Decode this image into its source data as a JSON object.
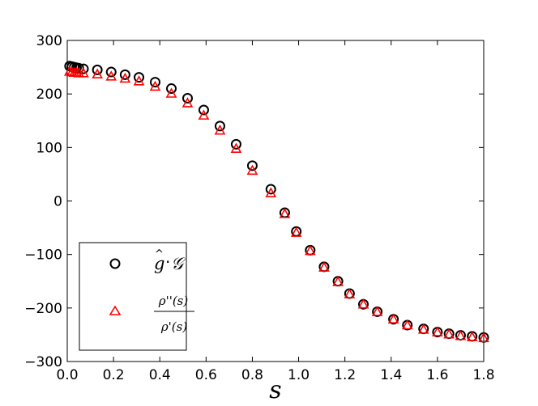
{
  "chart_data": {
    "type": "scatter",
    "title": "",
    "xlabel": "s",
    "ylabel": "",
    "xlim": [
      0.0,
      1.8
    ],
    "ylim": [
      -300,
      300
    ],
    "grid": false,
    "legend_position": "lower-left",
    "x_tick_labels": [
      "0.0",
      "0.2",
      "0.4",
      "0.6",
      "0.8",
      "1.0",
      "1.2",
      "1.4",
      "1.6",
      "1.8"
    ],
    "y_tick_labels": [
      "300",
      "200",
      "100",
      "0",
      "−100",
      "−200",
      "−300"
    ],
    "x_ticks": [
      0.0,
      0.2,
      0.4,
      0.6,
      0.8,
      1.0,
      1.2,
      1.4,
      1.6,
      1.8
    ],
    "y_ticks": [
      300,
      200,
      100,
      0,
      -100,
      -200,
      -300
    ],
    "series": [
      {
        "name": "ĝ·𝒢",
        "marker": "circle",
        "color": "#000000",
        "x": [
          0.01,
          0.02,
          0.03,
          0.04,
          0.05,
          0.07,
          0.13,
          0.19,
          0.25,
          0.31,
          0.38,
          0.45,
          0.52,
          0.59,
          0.66,
          0.73,
          0.8,
          0.88,
          0.94,
          0.99,
          1.05,
          1.11,
          1.17,
          1.22,
          1.28,
          1.34,
          1.41,
          1.47,
          1.54,
          1.6,
          1.65,
          1.7,
          1.75,
          1.8
        ],
        "y": [
          252,
          251,
          250,
          249,
          248,
          247,
          245,
          241,
          236,
          231,
          222,
          210,
          192,
          170,
          140,
          106,
          66,
          22,
          -22,
          -57,
          -92,
          -123,
          -150,
          -173,
          -193,
          -207,
          -221,
          -232,
          -239,
          -245,
          -248,
          -251,
          -253,
          -255
        ]
      },
      {
        "name": "ρ''(s) / ρ'(s)",
        "marker": "triangle",
        "color": "#ff0000",
        "x": [
          0.01,
          0.02,
          0.03,
          0.04,
          0.05,
          0.07,
          0.13,
          0.19,
          0.25,
          0.31,
          0.38,
          0.45,
          0.52,
          0.59,
          0.66,
          0.73,
          0.8,
          0.88,
          0.94,
          0.99,
          1.05,
          1.11,
          1.17,
          1.22,
          1.28,
          1.34,
          1.41,
          1.47,
          1.54,
          1.6,
          1.65,
          1.7,
          1.75,
          1.8
        ],
        "y": [
          242,
          241,
          240,
          240,
          239,
          239,
          237,
          233,
          229,
          224,
          214,
          201,
          183,
          160,
          132,
          98,
          57,
          15,
          -24,
          -59,
          -93,
          -124,
          -151,
          -174,
          -193,
          -207,
          -221,
          -232,
          -240,
          -245,
          -249,
          -252,
          -254,
          -256
        ]
      }
    ]
  },
  "legend": {
    "entry_1_g": "g",
    "entry_1_hat": "^",
    "entry_1_dot": "·",
    "entry_1_G": "𝒢",
    "entry_2_num": "ρ''(s)",
    "entry_2_den": "ρ'(s)"
  }
}
